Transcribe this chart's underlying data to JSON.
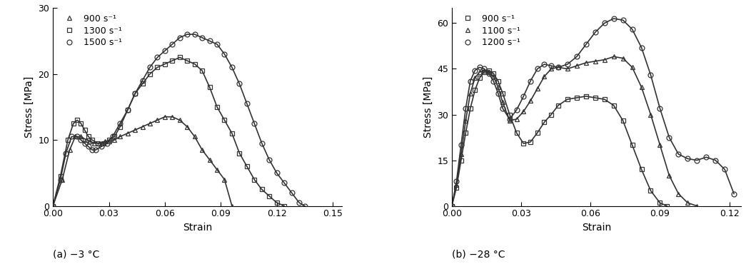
{
  "subplot_a": {
    "title": "(a) −3 °C",
    "xlabel": "Strain",
    "ylabel": "Stress [MPa]",
    "xlim": [
      0,
      0.155
    ],
    "ylim": [
      0,
      30
    ],
    "xticks": [
      0.0,
      0.03,
      0.06,
      0.09,
      0.12,
      0.15
    ],
    "yticks": [
      0,
      10,
      20,
      30
    ],
    "series": [
      {
        "label": "900 s⁻¹",
        "marker": "^",
        "x": [
          0.0,
          0.005,
          0.009,
          0.012,
          0.015,
          0.018,
          0.02,
          0.022,
          0.025,
          0.028,
          0.03,
          0.033,
          0.036,
          0.04,
          0.044,
          0.048,
          0.052,
          0.056,
          0.06,
          0.064,
          0.068,
          0.072,
          0.076,
          0.08,
          0.084,
          0.088,
          0.092,
          0.096
        ],
        "y": [
          0.0,
          4.0,
          8.5,
          10.5,
          10.5,
          10.0,
          9.8,
          9.5,
          9.5,
          9.8,
          9.8,
          10.0,
          10.5,
          11.0,
          11.5,
          12.0,
          12.5,
          13.0,
          13.5,
          13.5,
          13.0,
          12.0,
          10.5,
          8.5,
          7.0,
          5.5,
          4.0,
          0.0
        ]
      },
      {
        "label": "1300 s⁻¹",
        "marker": "s",
        "x": [
          0.0,
          0.004,
          0.008,
          0.011,
          0.013,
          0.015,
          0.017,
          0.019,
          0.021,
          0.024,
          0.027,
          0.03,
          0.033,
          0.036,
          0.04,
          0.044,
          0.048,
          0.052,
          0.056,
          0.06,
          0.064,
          0.068,
          0.072,
          0.076,
          0.08,
          0.084,
          0.088,
          0.092,
          0.096,
          0.1,
          0.104,
          0.108,
          0.112,
          0.116,
          0.12,
          0.124
        ],
        "y": [
          0.0,
          4.5,
          10.0,
          12.5,
          13.0,
          12.5,
          11.5,
          10.5,
          10.0,
          9.5,
          9.5,
          10.0,
          10.5,
          12.0,
          14.5,
          17.0,
          18.5,
          20.0,
          21.0,
          21.5,
          22.0,
          22.5,
          22.0,
          21.5,
          20.5,
          18.0,
          15.0,
          13.0,
          11.0,
          8.0,
          6.0,
          4.0,
          2.5,
          1.5,
          0.5,
          0.0
        ]
      },
      {
        "label": "1500 s⁻¹",
        "marker": "o",
        "x": [
          0.0,
          0.004,
          0.007,
          0.01,
          0.013,
          0.015,
          0.017,
          0.019,
          0.021,
          0.023,
          0.026,
          0.029,
          0.032,
          0.036,
          0.04,
          0.044,
          0.048,
          0.052,
          0.056,
          0.06,
          0.064,
          0.068,
          0.072,
          0.076,
          0.08,
          0.084,
          0.088,
          0.092,
          0.096,
          0.1,
          0.104,
          0.108,
          0.112,
          0.116,
          0.12,
          0.124,
          0.128,
          0.132,
          0.135
        ],
        "y": [
          0.0,
          4.0,
          8.0,
          10.5,
          10.5,
          10.0,
          9.5,
          9.0,
          8.5,
          8.5,
          9.0,
          9.5,
          10.5,
          12.5,
          14.5,
          17.0,
          19.0,
          21.0,
          22.5,
          23.5,
          24.5,
          25.5,
          26.0,
          26.0,
          25.5,
          25.0,
          24.5,
          23.0,
          21.0,
          18.5,
          15.5,
          12.5,
          9.5,
          7.0,
          5.0,
          3.5,
          2.0,
          0.5,
          0.0
        ]
      }
    ]
  },
  "subplot_b": {
    "title": "(b) −28 °C",
    "xlabel": "Strain",
    "ylabel": "Stress [MPa]",
    "xlim": [
      0,
      0.125
    ],
    "ylim": [
      0,
      65
    ],
    "xticks": [
      0.0,
      0.03,
      0.06,
      0.09,
      0.12
    ],
    "yticks": [
      0,
      15,
      30,
      45,
      60
    ],
    "series": [
      {
        "label": "900 s⁻¹",
        "marker": "s",
        "x": [
          0.0,
          0.002,
          0.004,
          0.006,
          0.008,
          0.01,
          0.012,
          0.014,
          0.016,
          0.018,
          0.02,
          0.022,
          0.025,
          0.028,
          0.031,
          0.034,
          0.037,
          0.04,
          0.043,
          0.046,
          0.05,
          0.054,
          0.058,
          0.062,
          0.066,
          0.07,
          0.074,
          0.078,
          0.082,
          0.086,
          0.09,
          0.093
        ],
        "y": [
          0.0,
          6.0,
          15.0,
          24.0,
          32.0,
          38.0,
          42.0,
          44.0,
          44.5,
          43.5,
          41.0,
          37.0,
          30.0,
          24.0,
          20.5,
          21.0,
          24.0,
          27.5,
          30.0,
          33.0,
          35.0,
          35.5,
          36.0,
          35.5,
          35.0,
          33.0,
          28.0,
          20.0,
          12.0,
          5.0,
          1.0,
          0.0
        ]
      },
      {
        "label": "1100 s⁻¹",
        "marker": "^",
        "x": [
          0.0,
          0.002,
          0.004,
          0.006,
          0.008,
          0.01,
          0.012,
          0.014,
          0.016,
          0.018,
          0.02,
          0.022,
          0.025,
          0.028,
          0.031,
          0.034,
          0.037,
          0.04,
          0.043,
          0.046,
          0.05,
          0.054,
          0.058,
          0.062,
          0.066,
          0.07,
          0.074,
          0.078,
          0.082,
          0.086,
          0.09,
          0.094,
          0.098,
          0.102,
          0.106
        ],
        "y": [
          0.0,
          7.0,
          17.0,
          28.0,
          37.0,
          42.0,
          44.0,
          44.5,
          44.0,
          42.5,
          39.0,
          34.0,
          28.0,
          28.5,
          31.0,
          34.5,
          38.5,
          42.5,
          45.0,
          45.5,
          45.0,
          46.0,
          47.0,
          47.5,
          48.0,
          49.0,
          48.5,
          45.5,
          39.0,
          30.0,
          20.0,
          10.0,
          4.0,
          1.0,
          0.0
        ]
      },
      {
        "label": "1200 s⁻¹",
        "marker": "o",
        "x": [
          0.0,
          0.002,
          0.004,
          0.006,
          0.008,
          0.01,
          0.012,
          0.014,
          0.016,
          0.018,
          0.02,
          0.022,
          0.025,
          0.028,
          0.031,
          0.034,
          0.037,
          0.04,
          0.043,
          0.046,
          0.05,
          0.054,
          0.058,
          0.062,
          0.066,
          0.07,
          0.074,
          0.078,
          0.082,
          0.086,
          0.09,
          0.094,
          0.098,
          0.102,
          0.106,
          0.11,
          0.114,
          0.118,
          0.122
        ],
        "y": [
          0.0,
          8.0,
          20.0,
          32.0,
          41.0,
          44.5,
          45.5,
          45.0,
          43.5,
          41.0,
          37.0,
          32.0,
          28.5,
          31.5,
          36.0,
          41.0,
          45.0,
          46.5,
          46.0,
          45.5,
          46.5,
          49.0,
          53.0,
          57.0,
          60.0,
          61.5,
          61.0,
          58.0,
          52.0,
          43.0,
          32.0,
          22.5,
          17.0,
          15.5,
          15.0,
          16.0,
          15.0,
          12.0,
          4.0
        ]
      }
    ]
  },
  "marker_size": 5,
  "line_width": 1.2,
  "font_size": 10,
  "tick_font_size": 9,
  "legend_font_size": 9
}
